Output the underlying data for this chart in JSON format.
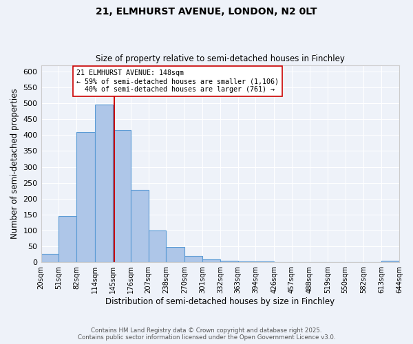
{
  "title": "21, ELMHURST AVENUE, LONDON, N2 0LT",
  "subtitle": "Size of property relative to semi-detached houses in Finchley",
  "xlabel": "Distribution of semi-detached houses by size in Finchley",
  "ylabel": "Number of semi-detached properties",
  "bar_edges": [
    20,
    51,
    82,
    114,
    145,
    176,
    207,
    238,
    270,
    301,
    332,
    363,
    394,
    426,
    457,
    488,
    519,
    550,
    582,
    613,
    644
  ],
  "bar_heights": [
    27,
    145,
    410,
    495,
    415,
    228,
    100,
    47,
    20,
    10,
    5,
    3,
    2,
    0,
    0,
    0,
    0,
    0,
    0,
    4
  ],
  "bar_color": "#aec6e8",
  "bar_edge_color": "#5b9bd5",
  "property_size": 148,
  "vline_color": "#cc0000",
  "annotation_text": "21 ELMHURST AVENUE: 148sqm\n← 59% of semi-detached houses are smaller (1,106)\n  40% of semi-detached houses are larger (761) →",
  "annotation_box_color": "#ffffff",
  "annotation_box_edge_color": "#cc0000",
  "ylim": [
    0,
    620
  ],
  "yticks": [
    0,
    50,
    100,
    150,
    200,
    250,
    300,
    350,
    400,
    450,
    500,
    550,
    600
  ],
  "tick_labels": [
    "20sqm",
    "51sqm",
    "82sqm",
    "114sqm",
    "145sqm",
    "176sqm",
    "207sqm",
    "238sqm",
    "270sqm",
    "301sqm",
    "332sqm",
    "363sqm",
    "394sqm",
    "426sqm",
    "457sqm",
    "488sqm",
    "519sqm",
    "550sqm",
    "582sqm",
    "613sqm",
    "644sqm"
  ],
  "footer_line1": "Contains HM Land Registry data © Crown copyright and database right 2025.",
  "footer_line2": "Contains public sector information licensed under the Open Government Licence v3.0.",
  "bg_color": "#eef2f9",
  "plot_bg_color": "#eef2f9"
}
